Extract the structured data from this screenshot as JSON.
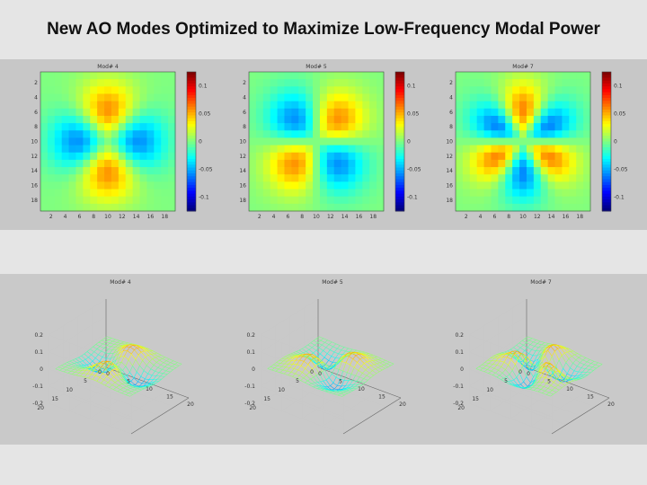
{
  "title": "New AO Modes Optimized to Maximize Low-Frequency Modal Power",
  "colors": {
    "page_bg": "#e5e5e5",
    "band_bg": "#c7c7c7",
    "colormap": "jet"
  },
  "chart_data": [
    {
      "type": "heatmap",
      "title": "Mod# 4",
      "mode": "quad",
      "grid_size": 19,
      "xticks": [
        "2",
        "4",
        "6",
        "8",
        "10",
        "12",
        "14",
        "16",
        "18"
      ],
      "yticks": [
        "2",
        "4",
        "6",
        "8",
        "10",
        "12",
        "14",
        "16",
        "18"
      ],
      "clim": [
        -0.1,
        0.1
      ],
      "colorbar_ticks": [
        0.1,
        0.05,
        0,
        -0.05,
        -0.1
      ],
      "colorbar_labels": [
        "0.1",
        "0.05",
        "0",
        "-0.05",
        "-0.1"
      ]
    },
    {
      "type": "heatmap",
      "title": "Mod# 5",
      "mode": "diag",
      "grid_size": 19,
      "xticks": [
        "2",
        "4",
        "6",
        "8",
        "10",
        "12",
        "14",
        "16",
        "18"
      ],
      "yticks": [
        "2",
        "4",
        "6",
        "8",
        "10",
        "12",
        "14",
        "16",
        "18"
      ],
      "clim": [
        -0.1,
        0.1
      ],
      "colorbar_ticks": [
        0.1,
        0.05,
        0,
        -0.05,
        -0.1
      ],
      "colorbar_labels": [
        "0.1",
        "0.05",
        "0",
        "-0.05",
        "-0.1"
      ]
    },
    {
      "type": "heatmap",
      "title": "Mod# 7",
      "mode": "hex",
      "grid_size": 19,
      "xticks": [
        "2",
        "4",
        "6",
        "8",
        "10",
        "12",
        "14",
        "16",
        "18"
      ],
      "yticks": [
        "2",
        "4",
        "6",
        "8",
        "10",
        "12",
        "14",
        "16",
        "18"
      ],
      "clim": [
        -0.1,
        0.1
      ],
      "colorbar_ticks": [
        0.1,
        0.05,
        0,
        -0.05,
        -0.1
      ],
      "colorbar_labels": [
        "0.1",
        "0.05",
        "0",
        "-0.05",
        "-0.1"
      ]
    },
    {
      "type": "surface",
      "title": "Mod# 4",
      "mode": "quad",
      "zticks": [
        "0.2",
        "0.1",
        "0",
        "-0.1",
        "-0.2"
      ],
      "xticks": [
        "0",
        "5",
        "10",
        "15",
        "20"
      ],
      "yticks": [
        "0",
        "5",
        "10",
        "15",
        "20"
      ]
    },
    {
      "type": "surface",
      "title": "Mod# 5",
      "mode": "diag",
      "zticks": [
        "0.2",
        "0.1",
        "0",
        "-0.1",
        "-0.2"
      ],
      "xticks": [
        "0",
        "5",
        "10",
        "15",
        "20"
      ],
      "yticks": [
        "0",
        "5",
        "10",
        "15",
        "20"
      ]
    },
    {
      "type": "surface",
      "title": "Mod# 7",
      "mode": "hex",
      "zticks": [
        "0.2",
        "0.1",
        "0",
        "-0.1",
        "-0.2"
      ],
      "xticks": [
        "0",
        "5",
        "10",
        "15",
        "20"
      ],
      "yticks": [
        "0",
        "5",
        "10",
        "15",
        "20"
      ]
    }
  ]
}
